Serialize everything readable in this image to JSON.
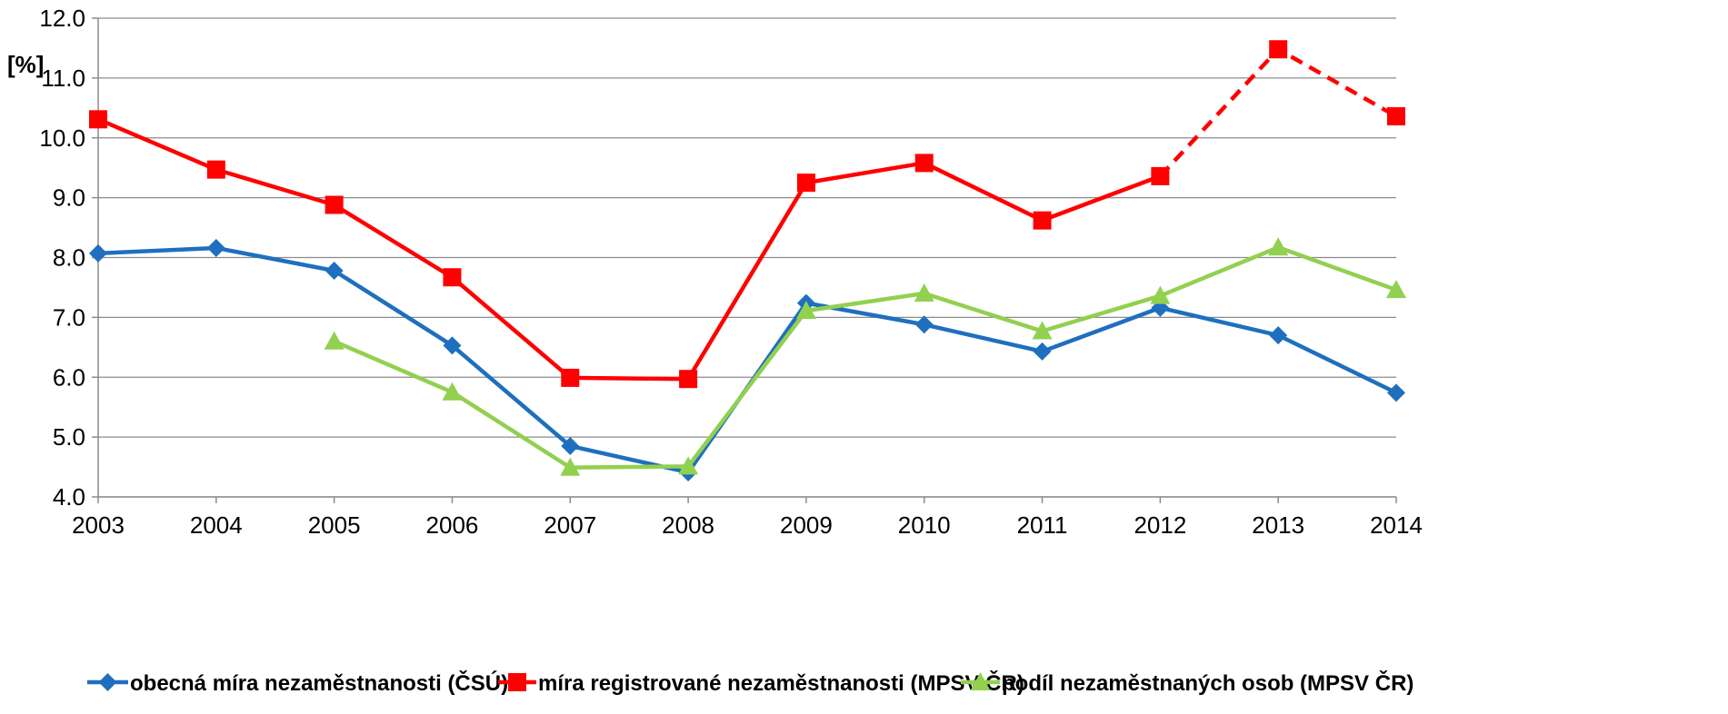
{
  "chart_data": {
    "type": "line",
    "title": "",
    "xlabel": "",
    "ylabel": "[%]",
    "categories": [
      "2003",
      "2004",
      "2005",
      "2006",
      "2007",
      "2008",
      "2009",
      "2010",
      "2011",
      "2012",
      "2013",
      "2014"
    ],
    "ylim": [
      4.0,
      12.0
    ],
    "yticks": [
      4.0,
      5.0,
      6.0,
      7.0,
      8.0,
      9.0,
      10.0,
      11.0,
      12.0
    ],
    "ytick_labels": [
      "4.0",
      "5.0",
      "6.0",
      "7.0",
      "8.0",
      "9.0",
      "10.0",
      "11.0",
      "12.0"
    ],
    "grid": true,
    "legend_position": "bottom",
    "series": [
      {
        "name": "obecná míra nezaměstnanosti (ČSÚ)",
        "color": "#1F6FBF",
        "marker": "diamond",
        "values": [
          8.07,
          8.16,
          7.78,
          6.53,
          4.85,
          4.41,
          7.24,
          6.88,
          6.43,
          7.16,
          6.7,
          5.74
        ]
      },
      {
        "name": "míra registrované nezaměstnanosti (MPSV ČR)",
        "color": "#FF0000",
        "marker": "square",
        "values": [
          10.31,
          9.47,
          8.88,
          7.67,
          5.99,
          5.97,
          9.25,
          9.58,
          8.62,
          9.36,
          11.48,
          10.36
        ],
        "dashed_from_index": 9
      },
      {
        "name": "podíl nezaměstnaných osob (MPSV ČR)",
        "color": "#92D050",
        "marker": "triangle",
        "values": [
          null,
          null,
          6.6,
          5.75,
          4.49,
          4.51,
          7.11,
          7.4,
          6.77,
          7.36,
          8.17,
          7.46
        ]
      }
    ]
  }
}
